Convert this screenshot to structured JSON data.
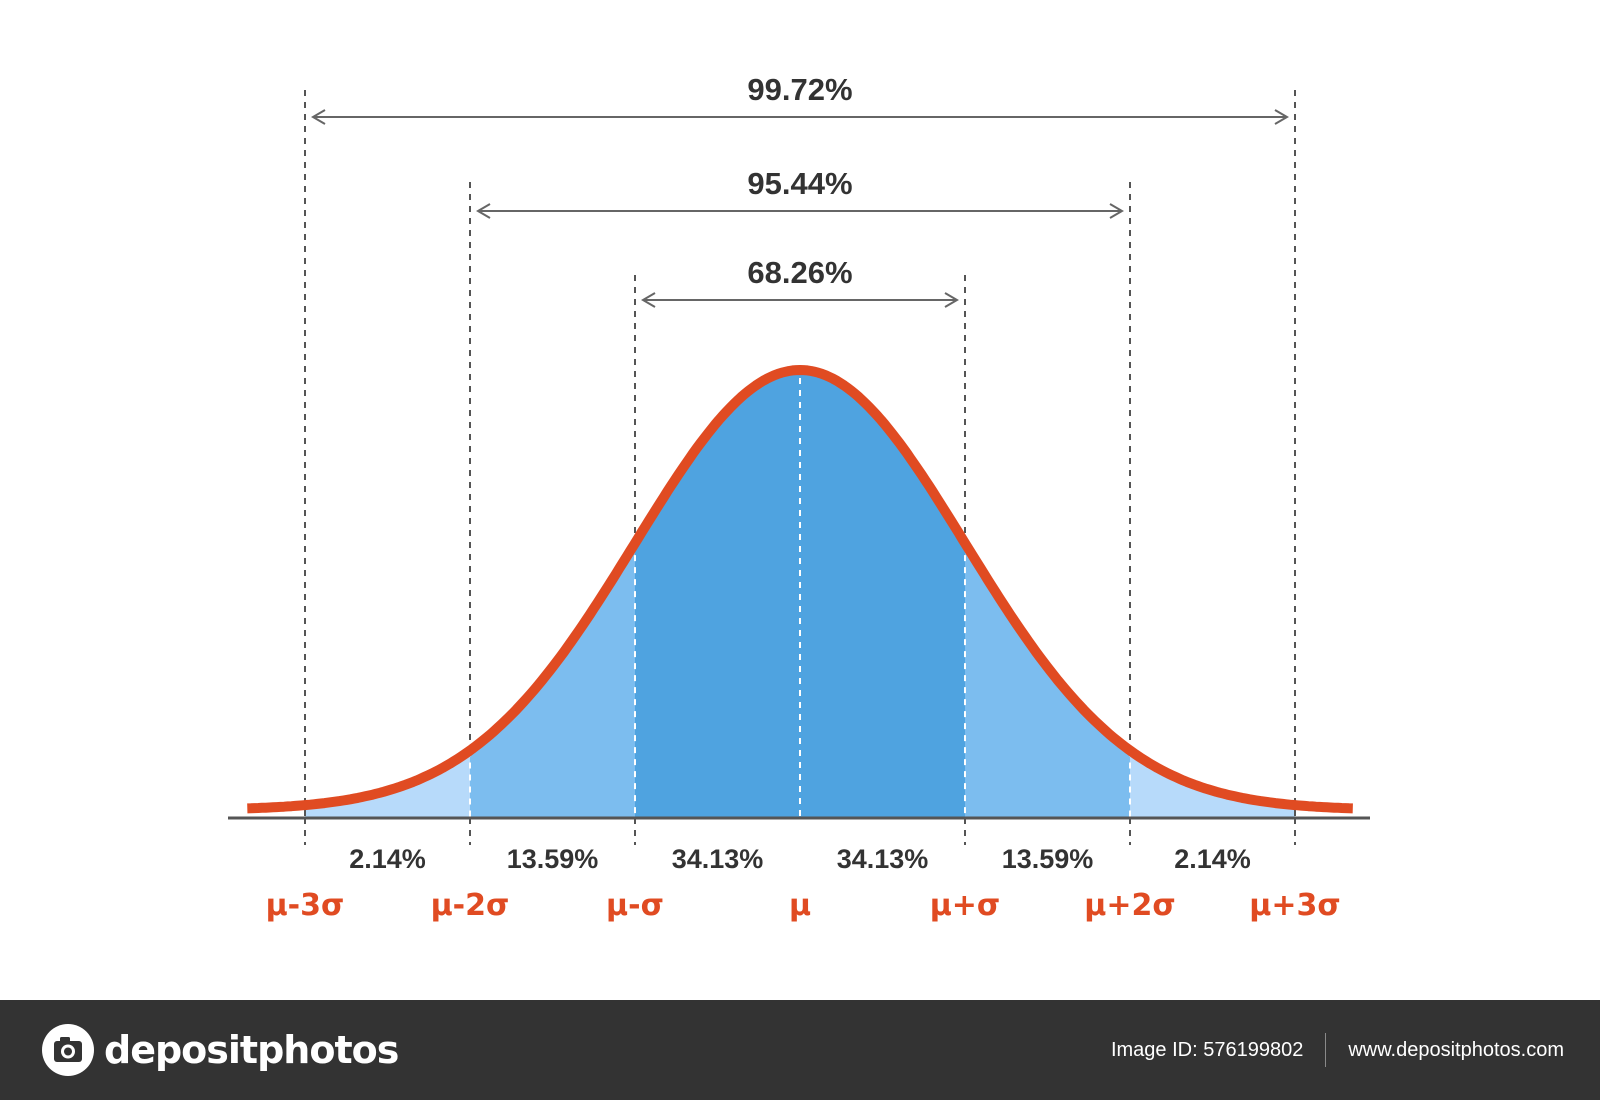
{
  "chart_data": {
    "type": "area",
    "curve": "normal-distribution",
    "x_labels": [
      "μ-3σ",
      "μ-2σ",
      "μ-σ",
      "μ",
      "μ+σ",
      "μ+2σ",
      "μ+3σ"
    ],
    "x_values": [
      -3,
      -2,
      -1,
      0,
      1,
      2,
      3
    ],
    "xlim": [
      -3.35,
      3.35
    ],
    "segments": [
      {
        "from": -3,
        "to": -2,
        "label": "2.14%"
      },
      {
        "from": -2,
        "to": -1,
        "label": "13.59%"
      },
      {
        "from": -1,
        "to": 0,
        "label": "34.13%"
      },
      {
        "from": 0,
        "to": 1,
        "label": "34.13%"
      },
      {
        "from": 1,
        "to": 2,
        "label": "13.59%"
      },
      {
        "from": 2,
        "to": 3,
        "label": "2.14%"
      }
    ],
    "intervals": [
      {
        "from": -1,
        "to": 1,
        "label": "68.26%"
      },
      {
        "from": -2,
        "to": 2,
        "label": "95.44%"
      },
      {
        "from": -3,
        "to": 3,
        "label": "99.72%"
      }
    ],
    "colors": {
      "curve": "#e04b22",
      "fill_1sigma": "#4fa3e0",
      "fill_2sigma": "#7cbdef",
      "fill_3sigma": "#b7dafa",
      "label_red": "#e04b22",
      "text_dark": "#333333",
      "baseline": "#555555"
    }
  },
  "footer": {
    "brand": "depositphotos",
    "image_id": "Image ID: 576199802",
    "site": "www.depositphotos.com"
  }
}
